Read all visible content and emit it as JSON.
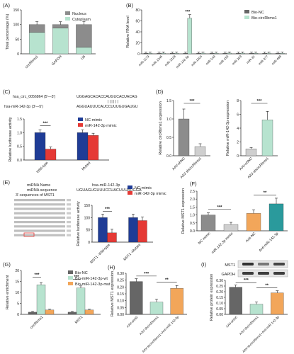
{
  "colors": {
    "gray": "#8c8c8c",
    "lightgreen": "#b7e3cf",
    "navy": "#1f3c96",
    "red": "#e53935",
    "orange": "#f2a65a",
    "teal": "#2a9a9c",
    "darkgray": "#666666",
    "lightgray": "#cfcfcf"
  },
  "chart_data": [
    {
      "panel": "(A)",
      "type": "bar",
      "stacked": true,
      "ylabel": "Total percentage (%)",
      "ylim": [
        0,
        150
      ],
      "yticks": [
        "0",
        "50",
        "100",
        "150"
      ],
      "categories": [
        "circRbms1",
        "GAPDH",
        "U6"
      ],
      "series": [
        {
          "name": "Nucleus",
          "values": [
            27,
            12,
            78
          ]
        },
        {
          "name": "Cytoplasm",
          "values": [
            73,
            88,
            22
          ]
        }
      ],
      "legend": "top-right"
    },
    {
      "panel": "(B)",
      "type": "bar",
      "ylabel": "Relative RNA level",
      "ylim": [
        0,
        80
      ],
      "yticks": [
        "0",
        "20",
        "40",
        "60",
        "80"
      ],
      "categories": [
        "miR-1179",
        "miR-1245",
        "miR-1228",
        "miR-142-3p",
        "miR-1204",
        "miR-149",
        "miR-153",
        "miR-203",
        "miR-31",
        "miR-377",
        "miR-488"
      ],
      "series": [
        {
          "name": "Bio-NC",
          "values": [
            1,
            1,
            1,
            1,
            1,
            1,
            1,
            1,
            1,
            1,
            1
          ]
        },
        {
          "name": "Bio-circRbms1",
          "values": [
            1.1,
            1.2,
            1.1,
            65,
            1.2,
            1.1,
            1.3,
            1.2,
            1.1,
            1.2,
            1.1
          ]
        }
      ],
      "annotation": "***",
      "legend": "top-right"
    },
    {
      "panel": "(C)",
      "type": "bar",
      "ylabel": "Relative luciferase activity",
      "ylim": [
        0,
        1.5
      ],
      "yticks": [
        "0.0",
        "0.5",
        "1.0",
        "1.5"
      ],
      "categories": [
        "Wild-type",
        "Mutant"
      ],
      "series": [
        {
          "name": "NC-mimic",
          "values": [
            1.0,
            1.0
          ]
        },
        {
          "name": "miR-142-3p mimic",
          "values": [
            0.4,
            0.9
          ]
        }
      ],
      "annotation": "***",
      "legend": "top-right",
      "sequence": {
        "circ_name": "hsa_circ_0056864 (5'—3')",
        "circ_seq": "UGGAGCACACCAUGUCACUACAG",
        "mir_name": "hsa-miR-142-3p (3'—5')",
        "mir_seq": "AGGUAUUUCAUCCUUUGUGAUGU",
        "pairing": "| | | | | |"
      }
    },
    {
      "panel": "(D)",
      "type": "bar",
      "subplots": [
        {
          "ylabel": "Relative circRbms1 expression",
          "ylim": [
            0,
            1.5
          ],
          "yticks": [
            "0.0",
            "0.5",
            "1.0",
            "1.5"
          ],
          "categories": [
            "AAV-shNC",
            "AAV-shcircRbms1"
          ],
          "values": [
            1.0,
            0.25
          ],
          "annotation": "***"
        },
        {
          "ylabel": "Relative miR-142-3p expression",
          "ylim": [
            0,
            8
          ],
          "yticks": [
            "0",
            "2",
            "4",
            "6",
            "8"
          ],
          "categories": [
            "AAV-shNC",
            "AAV-shcircRbms1"
          ],
          "values": [
            1.0,
            5.2
          ],
          "annotation": "***"
        }
      ]
    },
    {
      "panel": "(E)",
      "type": "bar",
      "ylabel": "Relative luciferase activity",
      "ylim": [
        0,
        150
      ],
      "yticks": [
        "0",
        "50",
        "100",
        "150"
      ],
      "categories": [
        "MST1\n-Wild-type",
        "MST1\n-Mutant"
      ],
      "series": [
        {
          "name": "NC-mimic",
          "values": [
            100,
            100
          ]
        },
        {
          "name": "miR-142-3p mimic",
          "values": [
            38,
            88
          ]
        }
      ],
      "annotation": "***",
      "legend": "top-right",
      "sequence": {
        "header_left_1": "miRNA Name",
        "header_left_2": "miRNA sequence",
        "header_left_3": "3'-sequences of MST1",
        "header_right_1": "hsa-miR-142-3p",
        "header_right_2": "UGUAGUGUUUCCUACUUUAUGGA"
      }
    },
    {
      "panel": "(F)",
      "type": "bar",
      "ylabel": "Relative MST1 expression",
      "ylim": [
        0,
        2.5
      ],
      "yticks": [
        "0.0",
        "0.5",
        "1.0",
        "1.5",
        "2.0",
        "2.5"
      ],
      "categories": [
        "NC mimic",
        "miR-142-3p mimic",
        "Anti-NC",
        "Anti-miR-142-3p"
      ],
      "values": [
        1.0,
        0.4,
        1.1,
        1.7
      ],
      "annotations": [
        "***",
        "**"
      ]
    },
    {
      "panel": "(G)",
      "type": "bar",
      "ylabel": "Relative enrichment",
      "ylim": [
        0,
        20
      ],
      "yticks": [
        "0",
        "5",
        "10",
        "15",
        "20"
      ],
      "categories": [
        "circRbms1",
        "MST1"
      ],
      "series": [
        {
          "name": "Bio-NC",
          "values": [
            1,
            1
          ]
        },
        {
          "name": "Bio-miR-142-3p-wt",
          "values": [
            13.5,
            12
          ]
        },
        {
          "name": "Bio-miR-142-3p-mut",
          "values": [
            2,
            2
          ]
        }
      ],
      "annotations": [
        "***",
        "***"
      ],
      "legend": "top-right"
    },
    {
      "panel": "(H)",
      "type": "bar",
      "ylabel": "Relative MST1 expression",
      "ylim": [
        0,
        0.3
      ],
      "yticks": [
        "0.00",
        "0.05",
        "0.10",
        "0.15",
        "0.20",
        "0.25",
        "0.30"
      ],
      "categories": [
        "AAV-shNC",
        "AAV-shcircRbms1",
        "AAV-shcircRbms1+Anti-miR-142-3p"
      ],
      "values": [
        0.24,
        0.09,
        0.19
      ],
      "annotations": [
        "***",
        "**"
      ]
    },
    {
      "panel": "(I)",
      "type": "bar",
      "ylabel": "Relative protein expression",
      "ylim": [
        0,
        0.3
      ],
      "yticks": [
        "0.00",
        "0.05",
        "0.10",
        "0.15",
        "0.20",
        "0.25",
        "0.30"
      ],
      "categories": [
        "AAV-shNC",
        "AAV-shcircRbms1",
        "AAV-shcircRbms1+Anti-miR-142-3p"
      ],
      "values": [
        0.24,
        0.09,
        0.19
      ],
      "annotations": [
        "***",
        "**"
      ],
      "blot_labels": [
        "MST1",
        "GAPDH"
      ]
    }
  ]
}
